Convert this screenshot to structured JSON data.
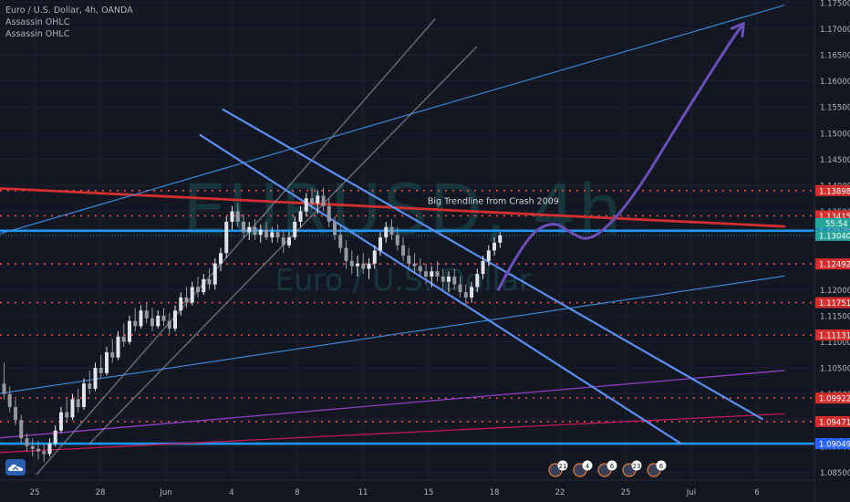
{
  "legend": {
    "symbol_line": "Euro / U.S. Dollar, 4h, OANDA",
    "indicators": [
      "Assassin OHLC",
      "Assassin OHLC"
    ]
  },
  "watermark": {
    "symbol": "EURUSD, 4h",
    "description": "Euro / U.S. Dollar"
  },
  "colors": {
    "background": "#131722",
    "axis_text": "#b2b5be",
    "red_trend": "#d32f2f",
    "blue_level": "#2196f3",
    "dotted_level": "#ef5350",
    "channel_blue": "#5b8ff0",
    "projection": "#6b4fbb",
    "purple_line": "#8e3fc2",
    "white_channel": "#8a8d96"
  },
  "icons": {
    "logo": "tradingview-logo-icon"
  },
  "chart_data": {
    "type": "candlestick",
    "symbol": "EURUSD",
    "interval": "4h",
    "ylim": [
      1.0835,
      1.1755
    ],
    "y_ticks": [
      1.085,
      1.09,
      1.095,
      1.1,
      1.105,
      1.11,
      1.115,
      1.12,
      1.125,
      1.13,
      1.135,
      1.14,
      1.145,
      1.15,
      1.155,
      1.16,
      1.165,
      1.17,
      1.175
    ],
    "x_ticks": [
      "25",
      "28",
      "Jun",
      "4",
      "8",
      "11",
      "15",
      "18",
      "22",
      "25",
      "Jul",
      "6"
    ],
    "price_labels": [
      {
        "value": 1.13898,
        "text": "1.13898",
        "style": "dotted"
      },
      {
        "value": 1.13415,
        "text": "1.13415",
        "style": "dotted"
      },
      {
        "value": 1.13129,
        "text": "1.13129",
        "style": "blue"
      },
      {
        "value": 1.1304,
        "text": "1.13040",
        "style": "last",
        "countdown": "55:54"
      },
      {
        "value": 1.12492,
        "text": "1.12492",
        "style": "dotted"
      },
      {
        "value": 1.11751,
        "text": "1.11751",
        "style": "dotted"
      },
      {
        "value": 1.11131,
        "text": "1.11131",
        "style": "dotted"
      },
      {
        "value": 1.09922,
        "text": "1.09922",
        "style": "dotted"
      },
      {
        "value": 1.09471,
        "text": "1.09471",
        "style": "dotted"
      },
      {
        "value": 1.09049,
        "text": "1.09049",
        "style": "blue"
      }
    ],
    "annotations": [
      {
        "text": "Big Trendline from Crash 2009",
        "t": 0.525,
        "v": 1.1364
      }
    ],
    "event_badges": [
      "21",
      "4",
      "6",
      "23",
      "6"
    ],
    "trendlines": [
      {
        "kind": "red",
        "t1": 0.0,
        "v1": 1.1394,
        "t2": 0.963,
        "v2": 1.1321
      },
      {
        "kind": "blue-thin",
        "t1": 0.0,
        "v1": 1.1307,
        "t2": 0.963,
        "v2": 1.1745
      },
      {
        "kind": "blue-thin",
        "t1": 0.0,
        "v1": 1.1001,
        "t2": 0.963,
        "v2": 1.1226
      },
      {
        "kind": "purple",
        "t1": 0.0,
        "v1": 1.0916,
        "t2": 0.963,
        "v2": 1.1045
      },
      {
        "kind": "pink",
        "t1": 0.0,
        "v1": 1.0888,
        "t2": 0.963,
        "v2": 1.0962
      },
      {
        "kind": "white-channel",
        "t1": 0.045,
        "v1": 1.0846,
        "t2": 0.534,
        "v2": 1.1718
      },
      {
        "kind": "white-channel",
        "t1": 0.11,
        "v1": 1.0905,
        "t2": 0.585,
        "v2": 1.1665
      },
      {
        "kind": "blue-channel",
        "t1": 0.274,
        "v1": 1.1545,
        "t2": 0.936,
        "v2": 1.0952
      },
      {
        "kind": "blue-channel",
        "t1": 0.246,
        "v1": 1.1496,
        "t2": 0.836,
        "v2": 1.0905
      }
    ],
    "projection_path": [
      [
        0.612,
        1.12
      ],
      [
        0.645,
        1.13
      ],
      [
        0.678,
        1.1332
      ],
      [
        0.7,
        1.131
      ],
      [
        0.722,
        1.1292
      ],
      [
        0.753,
        1.133
      ],
      [
        0.787,
        1.14
      ],
      [
        0.826,
        1.15
      ],
      [
        0.866,
        1.16
      ],
      [
        0.899,
        1.168
      ],
      [
        0.913,
        1.171
      ]
    ],
    "candles": [
      {
        "t": 0.005,
        "o": 1.102,
        "h": 1.106,
        "l": 1.099,
        "c": 1.1
      },
      {
        "t": 0.012,
        "o": 1.1,
        "h": 1.1015,
        "l": 1.0965,
        "c": 1.0975
      },
      {
        "t": 0.019,
        "o": 1.0975,
        "h": 1.099,
        "l": 1.094,
        "c": 1.095
      },
      {
        "t": 0.026,
        "o": 1.095,
        "h": 1.096,
        "l": 1.0905,
        "c": 1.0915
      },
      {
        "t": 0.033,
        "o": 1.0915,
        "h": 1.0925,
        "l": 1.089,
        "c": 1.09
      },
      {
        "t": 0.04,
        "o": 1.09,
        "h": 1.0915,
        "l": 1.088,
        "c": 1.0895
      },
      {
        "t": 0.047,
        "o": 1.0895,
        "h": 1.091,
        "l": 1.0875,
        "c": 1.089
      },
      {
        "t": 0.054,
        "o": 1.089,
        "h": 1.0905,
        "l": 1.087,
        "c": 1.0885
      },
      {
        "t": 0.061,
        "o": 1.0885,
        "h": 1.0915,
        "l": 1.088,
        "c": 1.0905
      },
      {
        "t": 0.068,
        "o": 1.0905,
        "h": 1.094,
        "l": 1.09,
        "c": 1.093
      },
      {
        "t": 0.075,
        "o": 1.093,
        "h": 1.0975,
        "l": 1.0925,
        "c": 1.0965
      },
      {
        "t": 0.082,
        "o": 1.0965,
        "h": 1.099,
        "l": 1.0945,
        "c": 1.0955
      },
      {
        "t": 0.089,
        "o": 1.0955,
        "h": 1.1,
        "l": 1.095,
        "c": 1.099
      },
      {
        "t": 0.096,
        "o": 1.099,
        "h": 1.101,
        "l": 1.0965,
        "c": 1.0975
      },
      {
        "t": 0.103,
        "o": 1.0975,
        "h": 1.103,
        "l": 1.097,
        "c": 1.102
      },
      {
        "t": 0.11,
        "o": 1.102,
        "h": 1.1045,
        "l": 1.1,
        "c": 1.101
      },
      {
        "t": 0.117,
        "o": 1.101,
        "h": 1.106,
        "l": 1.1005,
        "c": 1.105
      },
      {
        "t": 0.124,
        "o": 1.105,
        "h": 1.1075,
        "l": 1.103,
        "c": 1.104
      },
      {
        "t": 0.131,
        "o": 1.104,
        "h": 1.109,
        "l": 1.1035,
        "c": 1.108
      },
      {
        "t": 0.138,
        "o": 1.108,
        "h": 1.1105,
        "l": 1.106,
        "c": 1.107
      },
      {
        "t": 0.145,
        "o": 1.107,
        "h": 1.112,
        "l": 1.1065,
        "c": 1.111
      },
      {
        "t": 0.152,
        "o": 1.111,
        "h": 1.1135,
        "l": 1.109,
        "c": 1.11
      },
      {
        "t": 0.159,
        "o": 1.11,
        "h": 1.115,
        "l": 1.1095,
        "c": 1.114
      },
      {
        "t": 0.166,
        "o": 1.114,
        "h": 1.1165,
        "l": 1.112,
        "c": 1.113
      },
      {
        "t": 0.173,
        "o": 1.113,
        "h": 1.117,
        "l": 1.1125,
        "c": 1.116
      },
      {
        "t": 0.18,
        "o": 1.116,
        "h": 1.1175,
        "l": 1.1135,
        "c": 1.1145
      },
      {
        "t": 0.187,
        "o": 1.1145,
        "h": 1.1165,
        "l": 1.112,
        "c": 1.113
      },
      {
        "t": 0.194,
        "o": 1.113,
        "h": 1.116,
        "l": 1.1125,
        "c": 1.115
      },
      {
        "t": 0.201,
        "o": 1.115,
        "h": 1.1165,
        "l": 1.113,
        "c": 1.114
      },
      {
        "t": 0.208,
        "o": 1.114,
        "h": 1.1155,
        "l": 1.1115,
        "c": 1.1125
      },
      {
        "t": 0.215,
        "o": 1.1125,
        "h": 1.117,
        "l": 1.112,
        "c": 1.116
      },
      {
        "t": 0.222,
        "o": 1.116,
        "h": 1.1195,
        "l": 1.115,
        "c": 1.1185
      },
      {
        "t": 0.229,
        "o": 1.1185,
        "h": 1.1205,
        "l": 1.1165,
        "c": 1.1175
      },
      {
        "t": 0.236,
        "o": 1.1175,
        "h": 1.1215,
        "l": 1.117,
        "c": 1.1205
      },
      {
        "t": 0.243,
        "o": 1.1205,
        "h": 1.1225,
        "l": 1.1185,
        "c": 1.1195
      },
      {
        "t": 0.25,
        "o": 1.1195,
        "h": 1.123,
        "l": 1.119,
        "c": 1.122
      },
      {
        "t": 0.257,
        "o": 1.122,
        "h": 1.124,
        "l": 1.12,
        "c": 1.121
      },
      {
        "t": 0.264,
        "o": 1.121,
        "h": 1.126,
        "l": 1.12,
        "c": 1.125
      },
      {
        "t": 0.271,
        "o": 1.125,
        "h": 1.128,
        "l": 1.1235,
        "c": 1.127
      },
      {
        "t": 0.278,
        "o": 1.127,
        "h": 1.134,
        "l": 1.126,
        "c": 1.133
      },
      {
        "t": 0.285,
        "o": 1.133,
        "h": 1.136,
        "l": 1.1315,
        "c": 1.135
      },
      {
        "t": 0.292,
        "o": 1.135,
        "h": 1.1365,
        "l": 1.132,
        "c": 1.133
      },
      {
        "t": 0.299,
        "o": 1.133,
        "h": 1.1345,
        "l": 1.13,
        "c": 1.131
      },
      {
        "t": 0.306,
        "o": 1.131,
        "h": 1.133,
        "l": 1.1295,
        "c": 1.132
      },
      {
        "t": 0.313,
        "o": 1.132,
        "h": 1.1335,
        "l": 1.1295,
        "c": 1.1305
      },
      {
        "t": 0.32,
        "o": 1.1305,
        "h": 1.1325,
        "l": 1.129,
        "c": 1.1315
      },
      {
        "t": 0.327,
        "o": 1.1315,
        "h": 1.133,
        "l": 1.1295,
        "c": 1.13
      },
      {
        "t": 0.334,
        "o": 1.13,
        "h": 1.132,
        "l": 1.129,
        "c": 1.131
      },
      {
        "t": 0.341,
        "o": 1.131,
        "h": 1.1325,
        "l": 1.129,
        "c": 1.13
      },
      {
        "t": 0.348,
        "o": 1.13,
        "h": 1.1315,
        "l": 1.127,
        "c": 1.1285
      },
      {
        "t": 0.355,
        "o": 1.1285,
        "h": 1.131,
        "l": 1.128,
        "c": 1.13
      },
      {
        "t": 0.362,
        "o": 1.13,
        "h": 1.134,
        "l": 1.1295,
        "c": 1.133
      },
      {
        "t": 0.369,
        "o": 1.133,
        "h": 1.136,
        "l": 1.132,
        "c": 1.135
      },
      {
        "t": 0.376,
        "o": 1.135,
        "h": 1.1385,
        "l": 1.134,
        "c": 1.1375
      },
      {
        "t": 0.383,
        "o": 1.1375,
        "h": 1.1395,
        "l": 1.1355,
        "c": 1.1365
      },
      {
        "t": 0.39,
        "o": 1.1365,
        "h": 1.139,
        "l": 1.1345,
        "c": 1.138
      },
      {
        "t": 0.397,
        "o": 1.138,
        "h": 1.1395,
        "l": 1.135,
        "c": 1.136
      },
      {
        "t": 0.404,
        "o": 1.136,
        "h": 1.1375,
        "l": 1.132,
        "c": 1.133
      },
      {
        "t": 0.411,
        "o": 1.133,
        "h": 1.134,
        "l": 1.1295,
        "c": 1.1305
      },
      {
        "t": 0.418,
        "o": 1.1305,
        "h": 1.132,
        "l": 1.127,
        "c": 1.128
      },
      {
        "t": 0.425,
        "o": 1.128,
        "h": 1.1295,
        "l": 1.124,
        "c": 1.1255
      },
      {
        "t": 0.432,
        "o": 1.1255,
        "h": 1.1275,
        "l": 1.123,
        "c": 1.1245
      },
      {
        "t": 0.439,
        "o": 1.1245,
        "h": 1.1265,
        "l": 1.1225,
        "c": 1.125
      },
      {
        "t": 0.446,
        "o": 1.125,
        "h": 1.127,
        "l": 1.123,
        "c": 1.124
      },
      {
        "t": 0.453,
        "o": 1.124,
        "h": 1.126,
        "l": 1.122,
        "c": 1.125
      },
      {
        "t": 0.46,
        "o": 1.125,
        "h": 1.1285,
        "l": 1.124,
        "c": 1.1275
      },
      {
        "t": 0.467,
        "o": 1.1275,
        "h": 1.131,
        "l": 1.1265,
        "c": 1.13
      },
      {
        "t": 0.474,
        "o": 1.13,
        "h": 1.133,
        "l": 1.129,
        "c": 1.132
      },
      {
        "t": 0.481,
        "o": 1.132,
        "h": 1.1335,
        "l": 1.1295,
        "c": 1.1305
      },
      {
        "t": 0.488,
        "o": 1.1305,
        "h": 1.132,
        "l": 1.1275,
        "c": 1.1285
      },
      {
        "t": 0.495,
        "o": 1.1285,
        "h": 1.13,
        "l": 1.1255,
        "c": 1.1265
      },
      {
        "t": 0.502,
        "o": 1.1265,
        "h": 1.128,
        "l": 1.124,
        "c": 1.125
      },
      {
        "t": 0.509,
        "o": 1.125,
        "h": 1.127,
        "l": 1.123,
        "c": 1.1245
      },
      {
        "t": 0.516,
        "o": 1.1245,
        "h": 1.126,
        "l": 1.1225,
        "c": 1.1235
      },
      {
        "t": 0.523,
        "o": 1.1235,
        "h": 1.125,
        "l": 1.121,
        "c": 1.1225
      },
      {
        "t": 0.53,
        "o": 1.1225,
        "h": 1.1245,
        "l": 1.1205,
        "c": 1.1235
      },
      {
        "t": 0.537,
        "o": 1.1235,
        "h": 1.1255,
        "l": 1.1215,
        "c": 1.1225
      },
      {
        "t": 0.544,
        "o": 1.1225,
        "h": 1.124,
        "l": 1.12,
        "c": 1.1215
      },
      {
        "t": 0.551,
        "o": 1.1215,
        "h": 1.1235,
        "l": 1.1195,
        "c": 1.1225
      },
      {
        "t": 0.558,
        "o": 1.1225,
        "h": 1.124,
        "l": 1.12,
        "c": 1.121
      },
      {
        "t": 0.565,
        "o": 1.121,
        "h": 1.1225,
        "l": 1.1185,
        "c": 1.1195
      },
      {
        "t": 0.572,
        "o": 1.1195,
        "h": 1.121,
        "l": 1.117,
        "c": 1.1185
      },
      {
        "t": 0.579,
        "o": 1.1185,
        "h": 1.1215,
        "l": 1.1175,
        "c": 1.1205
      },
      {
        "t": 0.586,
        "o": 1.1205,
        "h": 1.124,
        "l": 1.1195,
        "c": 1.123
      },
      {
        "t": 0.593,
        "o": 1.123,
        "h": 1.1265,
        "l": 1.122,
        "c": 1.1255
      },
      {
        "t": 0.6,
        "o": 1.1255,
        "h": 1.1285,
        "l": 1.1245,
        "c": 1.1275
      },
      {
        "t": 0.607,
        "o": 1.1275,
        "h": 1.13,
        "l": 1.1265,
        "c": 1.129
      },
      {
        "t": 0.614,
        "o": 1.129,
        "h": 1.131,
        "l": 1.128,
        "c": 1.1304
      }
    ]
  }
}
